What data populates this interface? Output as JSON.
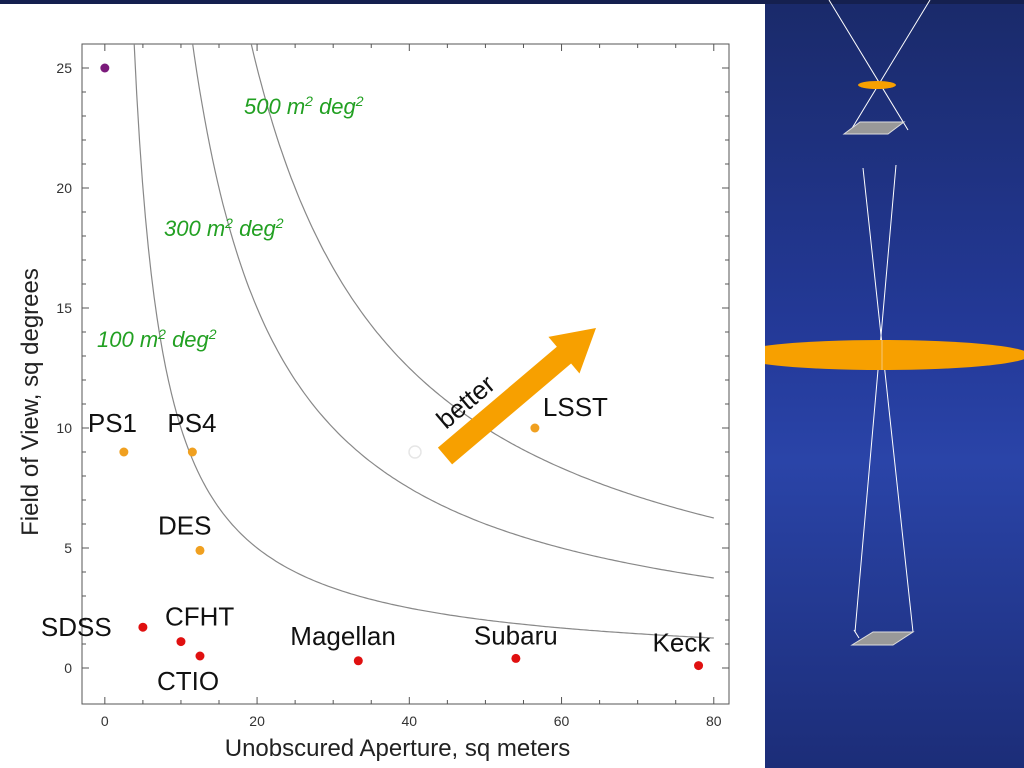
{
  "chart_data": {
    "type": "scatter",
    "title": "",
    "xlabel": "Unobscured Aperture, sq meters",
    "ylabel": "Field of View, sq degrees",
    "xlim": [
      -3,
      82
    ],
    "ylim": [
      -1.5,
      26
    ],
    "xticks": [
      0,
      20,
      40,
      60,
      80
    ],
    "yticks": [
      0,
      5,
      10,
      15,
      20,
      25
    ],
    "points": [
      {
        "name": "",
        "x": 0,
        "y": 25,
        "color": "#7b1a7b"
      },
      {
        "name": "PS1",
        "x": 2.5,
        "y": 9,
        "color": "#f0a020"
      },
      {
        "name": "PS4",
        "x": 11.5,
        "y": 9,
        "color": "#f0a020"
      },
      {
        "name": "DES",
        "x": 12.5,
        "y": 4.9,
        "color": "#f0a020"
      },
      {
        "name": "LSST",
        "x": 56.5,
        "y": 10,
        "color": "#f0a020"
      },
      {
        "name": "SDSS",
        "x": 5,
        "y": 1.7,
        "color": "#e01010"
      },
      {
        "name": "CFHT",
        "x": 10,
        "y": 1.1,
        "color": "#e01010"
      },
      {
        "name": "CTIO",
        "x": 12.5,
        "y": 0.5,
        "color": "#e01010"
      },
      {
        "name": "Magellan",
        "x": 33.3,
        "y": 0.3,
        "color": "#e01010"
      },
      {
        "name": "Subaru",
        "x": 54,
        "y": 0.4,
        "color": "#e01010"
      },
      {
        "name": "Keck",
        "x": 78,
        "y": 0.1,
        "color": "#e01010"
      }
    ],
    "curves": [
      {
        "product": 100,
        "label_base": "100 m",
        "label_mid": " deg",
        "sup": "2"
      },
      {
        "product": 300,
        "label_base": "300 m",
        "label_mid": " deg",
        "sup": "2"
      },
      {
        "product": 500,
        "label_base": "500 m",
        "label_mid": " deg",
        "sup": "2"
      }
    ],
    "annotation": {
      "text": "better",
      "color": "#f7a000"
    },
    "colors": {
      "optics_lens": "#f7a000",
      "optics_detector": "#999999"
    }
  }
}
